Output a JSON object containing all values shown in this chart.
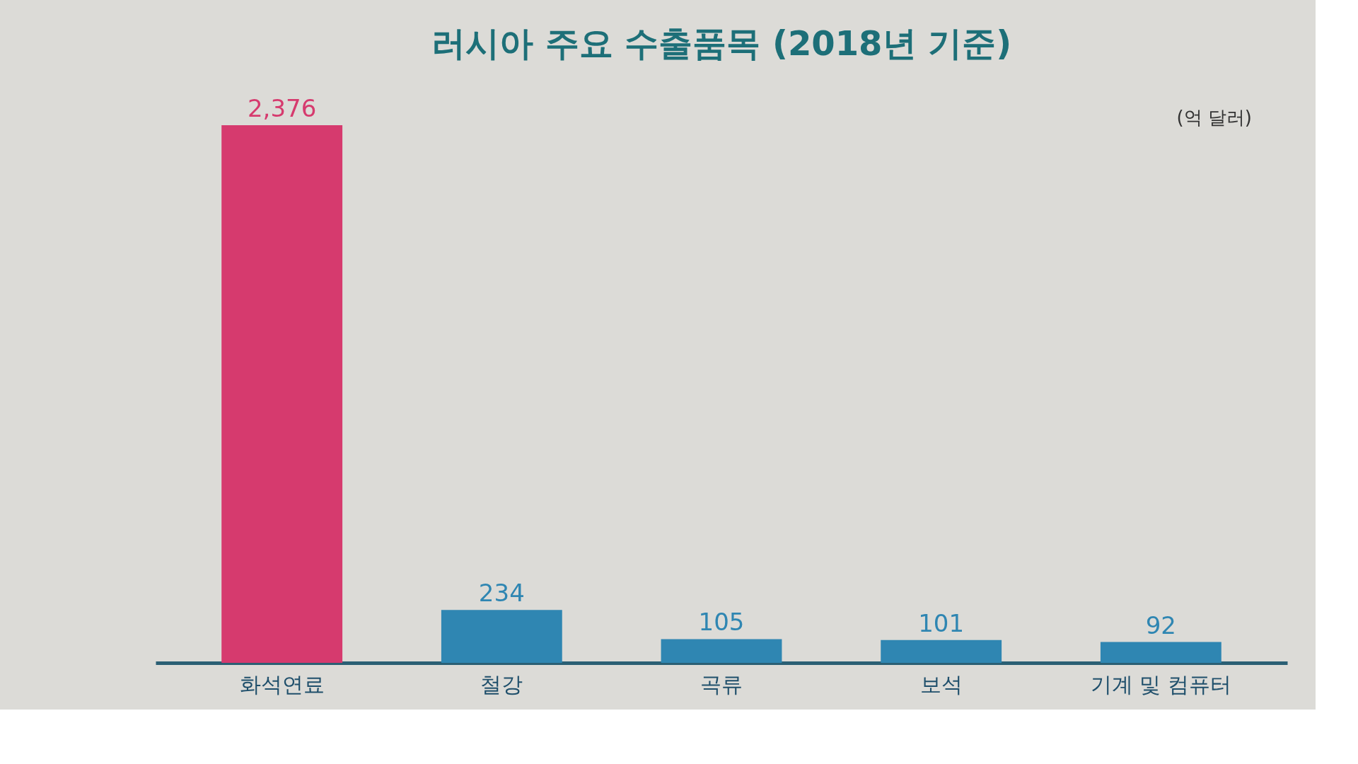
{
  "chart_data": {
    "type": "bar",
    "title": "러시아 주요 수출품목 (2018년 기준)",
    "categories": [
      "화석연료",
      "철강",
      "곡류",
      "보석",
      "기계 및 컴퓨터"
    ],
    "values": [
      2376,
      234,
      105,
      101,
      92
    ],
    "colors": [
      "#d63a6e",
      "#2f86b2",
      "#2f86b2",
      "#2f86b2",
      "#2f86b2"
    ],
    "value_labels": [
      "2,376",
      "234",
      "105",
      "101",
      "92"
    ],
    "annotations": [
      "(억 달러)"
    ]
  }
}
